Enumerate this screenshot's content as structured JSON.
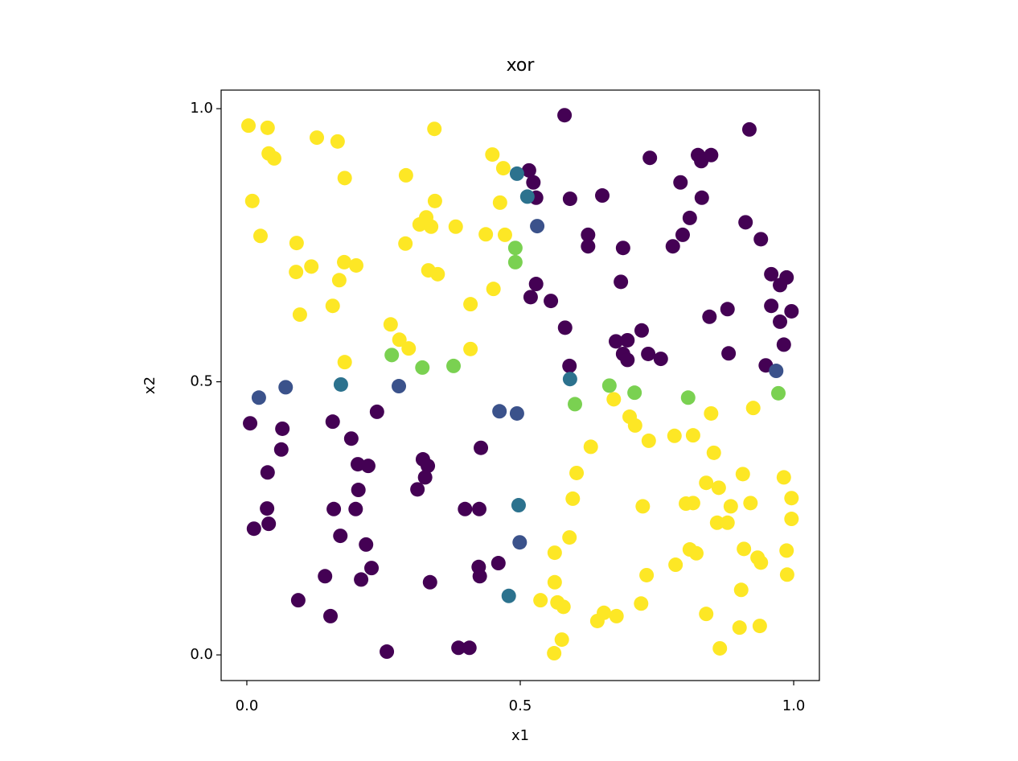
{
  "chart_data": {
    "type": "scatter",
    "title": "xor",
    "x_label": "x1",
    "y_label": "x2",
    "xlim": [
      -0.047,
      1.047
    ],
    "ylim": [
      -0.047,
      1.034
    ],
    "xticks": [
      {
        "value": 0,
        "label": "0.0"
      },
      0.5,
      {
        "value": 1,
        "label": "1.0"
      }
    ],
    "yticks": [
      {
        "value": 0,
        "label": "0.0"
      },
      0.5,
      {
        "value": 1,
        "label": "1.0"
      }
    ],
    "series": [
      {
        "color": "#fde725",
        "x": [
          0.003,
          0.038,
          0.01,
          0.025,
          0.04,
          0.05,
          0.128,
          0.166,
          0.179,
          0.091,
          0.09,
          0.118,
          0.178,
          0.2,
          0.169,
          0.157,
          0.097,
          0.179,
          0.291,
          0.343,
          0.344,
          0.316,
          0.328,
          0.337,
          0.29,
          0.382,
          0.332,
          0.349,
          0.437,
          0.409,
          0.409,
          0.263,
          0.279,
          0.296,
          0.451,
          0.472,
          0.463,
          0.449,
          0.469,
          0.671,
          0.7,
          0.71,
          0.735,
          0.629,
          0.782,
          0.816,
          0.849,
          0.926,
          0.854,
          0.603,
          0.596,
          0.59,
          0.563,
          0.563,
          0.537,
          0.568,
          0.579,
          0.576,
          0.562,
          0.641,
          0.653,
          0.676,
          0.721,
          0.731,
          0.724,
          0.784,
          0.81,
          0.822,
          0.803,
          0.816,
          0.84,
          0.863,
          0.885,
          0.86,
          0.879,
          0.907,
          0.921,
          0.909,
          0.934,
          0.94,
          0.904,
          0.901,
          0.938,
          0.865,
          0.84,
          0.982,
          0.996,
          0.996,
          0.987,
          0.988
        ],
        "y": [
          0.969,
          0.965,
          0.831,
          0.767,
          0.918,
          0.909,
          0.947,
          0.94,
          0.873,
          0.754,
          0.701,
          0.711,
          0.719,
          0.713,
          0.686,
          0.639,
          0.623,
          0.536,
          0.878,
          0.963,
          0.831,
          0.788,
          0.801,
          0.784,
          0.753,
          0.784,
          0.704,
          0.697,
          0.77,
          0.642,
          0.56,
          0.605,
          0.577,
          0.561,
          0.67,
          0.769,
          0.828,
          0.916,
          0.891,
          0.468,
          0.436,
          0.42,
          0.392,
          0.381,
          0.401,
          0.402,
          0.442,
          0.452,
          0.37,
          0.333,
          0.286,
          0.215,
          0.187,
          0.133,
          0.1,
          0.096,
          0.088,
          0.028,
          0.003,
          0.062,
          0.077,
          0.071,
          0.094,
          0.146,
          0.272,
          0.165,
          0.193,
          0.186,
          0.277,
          0.278,
          0.315,
          0.306,
          0.272,
          0.242,
          0.242,
          0.331,
          0.278,
          0.194,
          0.178,
          0.169,
          0.119,
          0.05,
          0.053,
          0.012,
          0.075,
          0.325,
          0.287,
          0.249,
          0.191,
          0.147
        ]
      },
      {
        "color": "#440154",
        "x": [
          0.581,
          0.516,
          0.524,
          0.529,
          0.591,
          0.65,
          0.624,
          0.624,
          0.688,
          0.737,
          0.793,
          0.825,
          0.831,
          0.849,
          0.81,
          0.797,
          0.779,
          0.832,
          0.919,
          0.912,
          0.94,
          0.959,
          0.975,
          0.987,
          0.996,
          0.959,
          0.975,
          0.982,
          0.949,
          0.879,
          0.846,
          0.881,
          0.529,
          0.519,
          0.556,
          0.582,
          0.59,
          0.675,
          0.696,
          0.722,
          0.688,
          0.696,
          0.734,
          0.757,
          0.684,
          0.006,
          0.065,
          0.063,
          0.038,
          0.037,
          0.04,
          0.013,
          0.157,
          0.191,
          0.203,
          0.222,
          0.238,
          0.204,
          0.159,
          0.199,
          0.171,
          0.218,
          0.228,
          0.209,
          0.143,
          0.094,
          0.153,
          0.256,
          0.322,
          0.331,
          0.326,
          0.312,
          0.428,
          0.399,
          0.425,
          0.424,
          0.426,
          0.46,
          0.335,
          0.387,
          0.407
        ],
        "y": [
          0.988,
          0.887,
          0.865,
          0.837,
          0.835,
          0.841,
          0.769,
          0.748,
          0.745,
          0.91,
          0.865,
          0.915,
          0.904,
          0.915,
          0.8,
          0.769,
          0.748,
          0.837,
          0.962,
          0.792,
          0.761,
          0.697,
          0.677,
          0.691,
          0.629,
          0.639,
          0.61,
          0.568,
          0.53,
          0.633,
          0.619,
          0.552,
          0.679,
          0.655,
          0.648,
          0.599,
          0.529,
          0.574,
          0.576,
          0.594,
          0.551,
          0.54,
          0.551,
          0.542,
          0.683,
          0.424,
          0.414,
          0.376,
          0.334,
          0.268,
          0.24,
          0.231,
          0.427,
          0.396,
          0.349,
          0.346,
          0.445,
          0.302,
          0.267,
          0.267,
          0.218,
          0.202,
          0.159,
          0.138,
          0.144,
          0.1,
          0.071,
          0.006,
          0.358,
          0.346,
          0.325,
          0.303,
          0.379,
          0.267,
          0.267,
          0.161,
          0.144,
          0.168,
          0.133,
          0.013,
          0.013
        ]
      },
      {
        "color": "#3b528b",
        "x": [
          0.531,
          0.022,
          0.071,
          0.278,
          0.462,
          0.494,
          0.499,
          0.968
        ],
        "y": [
          0.785,
          0.471,
          0.49,
          0.492,
          0.446,
          0.442,
          0.206,
          0.52
        ]
      },
      {
        "color": "#2c728e",
        "x": [
          0.494,
          0.513,
          0.172,
          0.591,
          0.497,
          0.479
        ],
        "y": [
          0.881,
          0.839,
          0.495,
          0.505,
          0.274,
          0.108
        ]
      },
      {
        "color": "#7ad151",
        "x": [
          0.491,
          0.491,
          0.265,
          0.321,
          0.378,
          0.663,
          0.709,
          0.6,
          0.807,
          0.972
        ],
        "y": [
          0.745,
          0.719,
          0.549,
          0.526,
          0.529,
          0.493,
          0.48,
          0.459,
          0.471,
          0.479
        ]
      }
    ]
  }
}
